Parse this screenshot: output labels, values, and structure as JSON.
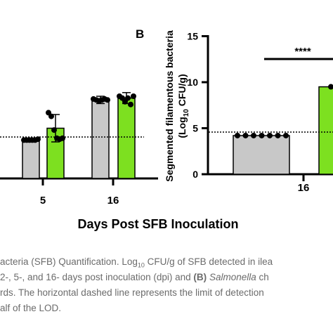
{
  "chart_data": [
    {
      "type": "bar",
      "panel": "A",
      "categories": [
        "5",
        "16"
      ],
      "xlabel": "Days Post SFB Inoculation",
      "series": [
        {
          "color": "#c8c8c8",
          "values": [
            4.2,
            8.6
          ],
          "error": [
            0.2,
            0.4
          ],
          "points": [
            [
              4.2,
              4.2,
              4.2,
              4.2,
              4.2,
              4.3
            ],
            [
              8.7,
              8.6,
              8.5,
              8.6,
              8.7,
              8.6
            ]
          ]
        },
        {
          "color": "#7de020",
          "values": [
            5.5,
            8.8
          ],
          "error": [
            1.5,
            0.6
          ],
          "points": [
            [
              7.2,
              6.8,
              5.3,
              4.4,
              4.3,
              4.4
            ],
            [
              9.0,
              8.8,
              8.4,
              8.8,
              8.1,
              9.0
            ]
          ]
        }
      ],
      "lod": 4.5,
      "ylim": [
        0,
        15
      ]
    },
    {
      "type": "bar",
      "panel": "B",
      "panel_label": "B",
      "categories": [
        "16"
      ],
      "ylabel": "Segmented filamentous bacteria (Log10 CFU/g)",
      "ylabel_line1": "Segmented filamentous bacteria",
      "ylabel_line2": "(Log",
      "ylabel_sub": "10",
      "ylabel_line2_end": " CFU/g)",
      "yticks": [
        "0",
        "5",
        "10",
        "15"
      ],
      "ylim": [
        0,
        15
      ],
      "series": [
        {
          "color": "#c8c8c8",
          "values": [
            4.2
          ],
          "points": [
            [
              4.2,
              4.2,
              4.2,
              4.2,
              4.2,
              4.2,
              4.2
            ]
          ]
        },
        {
          "color": "#7de020",
          "values": [
            9.5
          ],
          "points": [
            [
              9.5
            ]
          ]
        }
      ],
      "lod": 4.5,
      "significance": "****"
    }
  ],
  "caption": {
    "line1_a": "acteria (SFB) Quantification. Log",
    "line1_sub": "10",
    "line1_b": " CFU/g of SFB detected in ilea",
    "line2_a": "2-, 5-, and 16- days post inoculation (dpi) and ",
    "line2_bold": "(B)",
    "line2_italic": "Salmonella",
    "line2_c": " ch",
    "line3": "rds. The horizontal dashed line represents the limit of detection",
    "line4": "alf of the LOD."
  }
}
